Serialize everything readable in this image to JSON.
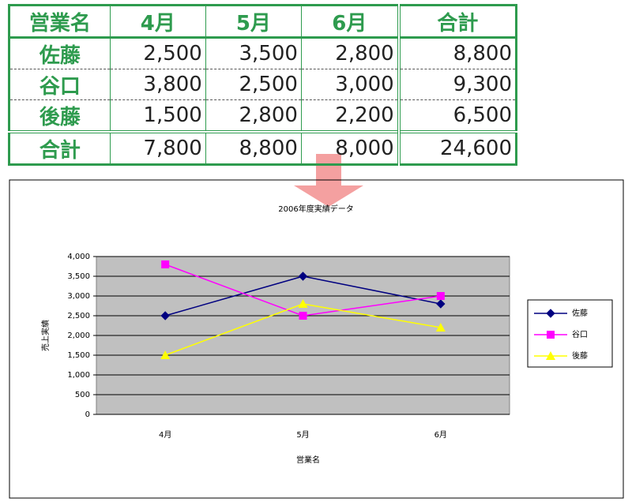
{
  "table": {
    "header": [
      "営業名",
      "4月",
      "5月",
      "6月",
      "合計"
    ],
    "rows": [
      [
        "佐藤",
        "2,500",
        "3,500",
        "2,800",
        "8,800"
      ],
      [
        "谷口",
        "3,800",
        "2,500",
        "3,000",
        "9,300"
      ],
      [
        "後藤",
        "1,500",
        "2,800",
        "2,200",
        "6,500"
      ]
    ],
    "total": [
      "合計",
      "7,800",
      "8,800",
      "8,000",
      "24,600"
    ]
  },
  "chart_data": {
    "type": "line",
    "title": "2006年度実績データ",
    "x_label": "営業名",
    "y_label": "売上実績",
    "categories": [
      "4月",
      "5月",
      "6月"
    ],
    "series": [
      {
        "name": "佐藤",
        "color": "#000080",
        "marker": "diamond",
        "values": [
          2500,
          3500,
          2800
        ]
      },
      {
        "name": "谷口",
        "color": "#ff00ff",
        "marker": "square",
        "values": [
          3800,
          2500,
          3000
        ]
      },
      {
        "name": "後藤",
        "color": "#ffff00",
        "marker": "triangle",
        "values": [
          1500,
          2800,
          2200
        ]
      }
    ],
    "ylim": [
      0,
      4000
    ],
    "yticks": [
      0,
      500,
      {
        "value": 1000,
        "label": "1,000"
      },
      {
        "value": 1500,
        "label": "1,500"
      },
      {
        "value": 2000,
        "label": "2,000"
      },
      {
        "value": 2500,
        "label": "2,500"
      },
      {
        "value": 3000,
        "label": "3,000"
      },
      {
        "value": 3500,
        "label": "3,500"
      },
      {
        "value": 4000,
        "label": "4,000"
      }
    ],
    "grid": true,
    "legend": "right"
  }
}
